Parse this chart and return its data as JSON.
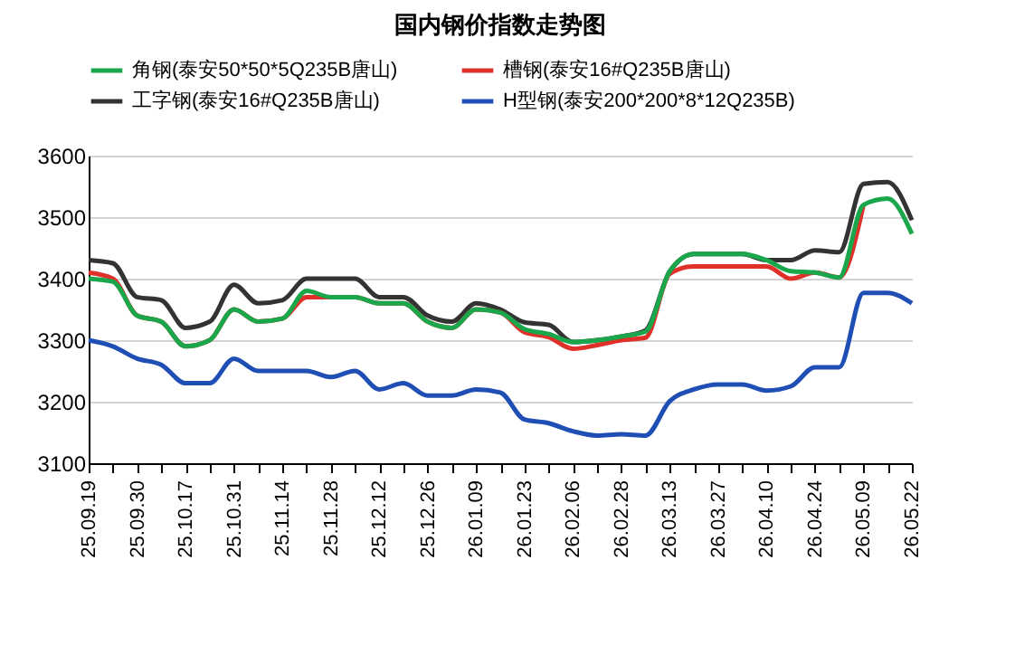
{
  "chart_data": {
    "type": "line",
    "title": "国内钢价指数走势图",
    "categories": [
      "25.09.19",
      null,
      "25.09.30",
      null,
      "25.10.17",
      null,
      "25.10.31",
      null,
      "25.11.14",
      null,
      "25.11.28",
      null,
      "25.12.12",
      null,
      "25.12.26",
      null,
      "26.01.09",
      null,
      "26.01.23",
      null,
      "26.02.06",
      null,
      "26.02.28",
      null,
      "26.03.13",
      null,
      "26.03.27",
      null,
      "26.04.10",
      null,
      "26.04.24",
      null,
      "26.05.09",
      null,
      "26.05.22"
    ],
    "series": [
      {
        "name": "角钢(泰安50*50*5Q235B唐山)",
        "color": "#1aa64b",
        "values": [
          3400,
          3395,
          3340,
          3330,
          3290,
          3300,
          3350,
          3330,
          3335,
          3380,
          3370,
          3370,
          3360,
          3360,
          3330,
          3320,
          3350,
          3345,
          3318,
          3310,
          3297,
          3300,
          3306,
          3314,
          3412,
          3440,
          3440,
          3440,
          3430,
          3412,
          3410,
          3402,
          3520,
          3530,
          3473
        ]
      },
      {
        "name": "槽钢(泰安16#Q235B唐山)",
        "color": "#e0302a",
        "values": [
          3410,
          3400,
          3340,
          3330,
          3290,
          3300,
          3350,
          3330,
          3335,
          3370,
          3370,
          3370,
          3360,
          3360,
          3330,
          3320,
          3350,
          3345,
          3313,
          3305,
          3286,
          3292,
          3300,
          3304,
          3408,
          3420,
          3420,
          3420,
          3420,
          3400,
          3410,
          3402,
          3520,
          null,
          null
        ]
      },
      {
        "name": "工字钢(泰安16#Q235B唐山)",
        "color": "#333333",
        "values": [
          3430,
          3425,
          3370,
          3365,
          3320,
          3330,
          3390,
          3360,
          3365,
          3400,
          3400,
          3400,
          3370,
          3370,
          3340,
          3330,
          3360,
          3350,
          3329,
          3325,
          3297,
          3300,
          3306,
          3316,
          3412,
          3440,
          3440,
          3440,
          3430,
          3430,
          3446,
          3443,
          3554,
          3557,
          3495
        ]
      },
      {
        "name": "H型钢(泰安200*200*8*12Q235B)",
        "color": "#1f4fb5",
        "values": [
          3300,
          3290,
          3270,
          3260,
          3230,
          3230,
          3270,
          3250,
          3250,
          3250,
          3240,
          3250,
          3220,
          3230,
          3210,
          3210,
          3220,
          3215,
          3171,
          3165,
          3152,
          3145,
          3147,
          3145,
          3201,
          3220,
          3228,
          3228,
          3218,
          3225,
          3256,
          3256,
          3377,
          3377,
          3360
        ]
      }
    ],
    "ylim": [
      3100,
      3600
    ],
    "yticks": [
      3100,
      3200,
      3300,
      3400,
      3500,
      3600
    ],
    "grid": "y",
    "legend": "top",
    "line_style": "solid",
    "marker": "none"
  }
}
